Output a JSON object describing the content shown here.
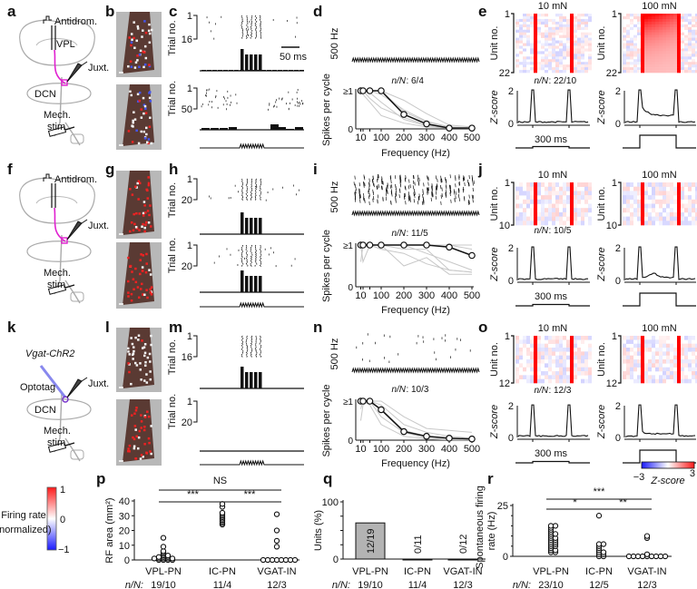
{
  "panel_labels": [
    "a",
    "b",
    "c",
    "d",
    "e",
    "f",
    "g",
    "h",
    "i",
    "j",
    "k",
    "l",
    "m",
    "n",
    "o",
    "p",
    "q",
    "r"
  ],
  "rows": [
    {
      "schematic": {
        "stim_pulse_label": "Antidrom.",
        "region": "VPL",
        "electrode": "Juxt.",
        "nucleus": "DCN",
        "stim_line1": "Mech.",
        "stim_line2": "stim."
      },
      "raster_top": {
        "ylabel": "Trial no.",
        "first": "1",
        "last": "16"
      },
      "raster_bottom": {
        "ylabel": "Trial no.",
        "first": "1",
        "last": "50"
      },
      "scale_bar": "50 ms",
      "freq": {
        "stim_label": "500 Hz",
        "nN_label": "n/N",
        "nN_value": "6/4",
        "ylabel": "Spikes per cycle",
        "xlabel": "Frequency (Hz)",
        "ytop": "≥1",
        "ybottom": "0"
      },
      "heat": {
        "left_title": "10 mN",
        "right_title": "100 mN",
        "ylabel": "Unit no.",
        "first": "1",
        "last": "22",
        "nN_label": "n/N",
        "nN_value": "22/10",
        "zlabel": "Z-score",
        "z_top": "2",
        "z_bottom": "0",
        "duration": "300 ms"
      }
    },
    {
      "schematic": {
        "stim_pulse_label": "Antidrom.",
        "electrode": "Juxt.",
        "stim_line1": "Mech.",
        "stim_line2": "stim."
      },
      "raster_top": {
        "ylabel": "Trial no.",
        "first": "1",
        "last": "20"
      },
      "raster_bottom": {
        "ylabel": "Trial no.",
        "first": "1",
        "last": "20"
      },
      "freq": {
        "stim_label": "500 Hz",
        "nN_label": "n/N",
        "nN_value": "11/5",
        "ylabel": "Spikes per cycle",
        "xlabel": "Frequency (Hz)",
        "ytop": "≥1",
        "ybottom": "0"
      },
      "heat": {
        "left_title": "10 mN",
        "right_title": "100 mN",
        "ylabel": "Unit no.",
        "first": "1",
        "last": "10",
        "nN_label": "n/N",
        "nN_value": "10/5",
        "zlabel": "Z-score",
        "z_top": "2",
        "z_bottom": "0",
        "duration": "300 ms"
      }
    },
    {
      "schematic": {
        "genotype": "Vgat-ChR2",
        "optotag": "Optotag",
        "electrode": "Juxt.",
        "nucleus": "DCN",
        "stim_line1": "Mech.",
        "stim_line2": "stim."
      },
      "raster_top": {
        "ylabel": "Trial no.",
        "first": "1",
        "last": "16"
      },
      "raster_bottom": {
        "ylabel": "Trial no.",
        "first": "1",
        "last": "20"
      },
      "freq": {
        "stim_label": "500 Hz",
        "nN_label": "n/N",
        "nN_value": "10/3",
        "ylabel": "Spikes per cycle",
        "xlabel": "Frequency (Hz)",
        "ytop": "≥1",
        "ybottom": "0"
      },
      "heat": {
        "left_title": "10 mN",
        "right_title": "100 mN",
        "ylabel": "Unit no.",
        "first": "1",
        "last": "12",
        "nN_label": "n/N",
        "nN_value": "12/3",
        "zlabel": "Z-score",
        "z_top": "2",
        "z_bottom": "0",
        "duration": "300 ms"
      }
    }
  ],
  "firing_rate_colorbar": {
    "label_line1": "Firing rate",
    "label_line2": "(normalized)",
    "max": "1",
    "mid": "0",
    "min": "−1",
    "colors": [
      "#1a1aff",
      "#ffffff",
      "#ff1a1a"
    ]
  },
  "zscore_colorbar": {
    "min": "−3",
    "label": "Z-score",
    "max": "3",
    "colors": [
      "#1a1aff",
      "#ffffff",
      "#ff1a1a"
    ]
  },
  "nN_row_label": "n/N:",
  "chart_data": [
    {
      "panel": "d",
      "type": "line",
      "xlabel": "Frequency (Hz)",
      "ylabel": "Spikes per cycle",
      "x_ticks": [
        "10",
        "100",
        "200",
        "300",
        "400",
        "500"
      ],
      "y_ticks": [
        "0",
        "≥1"
      ],
      "ylim": [
        0,
        1
      ],
      "xlim": [
        0,
        500
      ],
      "x": [
        10,
        20,
        50,
        100,
        200,
        300,
        400,
        500
      ],
      "mean": [
        1,
        1,
        1,
        1,
        0.38,
        0.13,
        0.02,
        0.02
      ],
      "individual": [
        [
          1,
          1,
          1,
          1,
          0.75,
          0.4,
          0.1,
          0.05
        ],
        [
          1,
          1,
          0.8,
          0.55,
          0.3,
          0.1,
          0.02,
          0.01
        ],
        [
          1,
          0.9,
          0.7,
          0.35,
          0.15,
          0.05,
          0.02,
          0.01
        ],
        [
          1,
          1,
          1,
          0.9,
          0.5,
          0.2,
          0.05,
          0.02
        ],
        [
          1,
          1,
          0.95,
          0.7,
          0.25,
          0.08,
          0.03,
          0.02
        ],
        [
          1,
          1,
          1,
          1,
          0.45,
          0.18,
          0.05,
          0.03
        ]
      ]
    },
    {
      "panel": "i",
      "type": "line",
      "xlabel": "Frequency (Hz)",
      "ylabel": "Spikes per cycle",
      "x_ticks": [
        "10",
        "100",
        "200",
        "300",
        "400",
        "500"
      ],
      "y_ticks": [
        "0",
        "≥1"
      ],
      "ylim": [
        0,
        1
      ],
      "xlim": [
        0,
        500
      ],
      "x": [
        10,
        20,
        50,
        100,
        200,
        300,
        400,
        500
      ],
      "mean": [
        1,
        1,
        1,
        1,
        1,
        1,
        0.95,
        0.75
      ],
      "individual": [
        [
          1,
          0.6,
          1,
          1,
          0.5,
          0.7,
          0.3,
          0.3
        ],
        [
          1,
          1,
          1,
          0.9,
          0.8,
          0.55,
          0.4,
          0.35
        ],
        [
          0.6,
          1,
          1,
          1,
          1,
          0.8,
          0.6,
          0.4
        ],
        [
          1,
          1,
          1,
          1,
          1,
          1,
          1,
          1
        ],
        [
          1,
          1,
          1,
          1,
          0.9,
          0.9,
          0.4,
          0.35
        ],
        [
          1,
          1,
          1,
          1,
          1,
          1,
          1,
          0.9
        ]
      ]
    },
    {
      "panel": "n",
      "type": "line",
      "xlabel": "Frequency (Hz)",
      "ylabel": "Spikes per cycle",
      "x_ticks": [
        "10",
        "100",
        "200",
        "300",
        "400",
        "500"
      ],
      "y_ticks": [
        "0",
        "≥1"
      ],
      "ylim": [
        0,
        1
      ],
      "xlim": [
        0,
        500
      ],
      "x": [
        10,
        20,
        50,
        100,
        200,
        300,
        400,
        500
      ],
      "mean": [
        1,
        1,
        1,
        0.78,
        0.22,
        0.1,
        0.05,
        0.03
      ],
      "individual": [
        [
          1,
          1,
          1,
          1,
          0.6,
          0.3,
          0.25,
          0.2
        ],
        [
          0.8,
          1,
          1,
          0.6,
          0.2,
          0.05,
          0.02,
          0.01
        ],
        [
          1,
          1,
          0.9,
          0.4,
          0.1,
          0.03,
          0.01,
          0.01
        ],
        [
          0.5,
          0.9,
          1,
          0.8,
          0.25,
          0.1,
          0.05,
          0.02
        ],
        [
          1,
          1,
          1,
          0.9,
          0.4,
          0.2,
          0.1,
          0.05
        ]
      ]
    },
    {
      "panel": "p",
      "type": "scatter",
      "ylabel": "RF area (mm²)",
      "y_ticks": [
        "0",
        "10",
        "20",
        "30",
        "40"
      ],
      "ylim": [
        0,
        40
      ],
      "categories": [
        "VPL-PN",
        "IC-PN",
        "VGAT-IN"
      ],
      "nN": [
        "19/10",
        "11/4",
        "12/3"
      ],
      "values": [
        [
          0,
          0,
          0,
          0,
          1,
          1,
          1,
          1,
          1,
          2,
          2,
          2,
          3,
          3,
          4,
          5,
          6,
          9,
          15
        ],
        [
          24,
          25,
          26,
          27,
          28,
          29,
          30,
          31,
          32,
          36,
          38
        ],
        [
          0,
          0,
          0,
          0,
          0,
          0,
          0,
          0,
          9,
          13,
          20,
          31
        ]
      ],
      "significance": [
        {
          "pair": [
            "VPL-PN",
            "VGAT-IN"
          ],
          "label": "NS"
        },
        {
          "pair": [
            "VPL-PN",
            "IC-PN"
          ],
          "label": "***"
        },
        {
          "pair": [
            "IC-PN",
            "VGAT-IN"
          ],
          "label": "***"
        }
      ]
    },
    {
      "panel": "q",
      "type": "bar",
      "ylabel": "Units (%)",
      "y_ticks": [
        "0",
        "100"
      ],
      "ylim": [
        0,
        100
      ],
      "categories": [
        "VPL-PN",
        "IC-PN",
        "VGAT-IN"
      ],
      "nN": [
        "19/10",
        "11/4",
        "12/3"
      ],
      "values": [
        63.2,
        0,
        0
      ],
      "bar_labels": [
        "12/19",
        "0/11",
        "0/12"
      ],
      "bar_color": "#b3b3b3"
    },
    {
      "panel": "r",
      "type": "scatter",
      "ylabel_line1": "Spontaneous firing",
      "ylabel_line2": "rate (Hz)",
      "y_ticks": [
        "0",
        "25"
      ],
      "ylim": [
        0,
        25
      ],
      "categories": [
        "VPL-PN",
        "IC-PN",
        "VGAT-IN"
      ],
      "nN": [
        "23/10",
        "12/5",
        "12/3"
      ],
      "values": [
        [
          2,
          2,
          3,
          3,
          4,
          5,
          5,
          6,
          6,
          7,
          7,
          8,
          8,
          9,
          9,
          10,
          11,
          11,
          12,
          13,
          14,
          15,
          15
        ],
        [
          0,
          0,
          1,
          1,
          2,
          2,
          3,
          4,
          5,
          6,
          6,
          20
        ],
        [
          0,
          0,
          0,
          0,
          0,
          0,
          0,
          0,
          0,
          1,
          9,
          10
        ]
      ],
      "significance": [
        {
          "pair": [
            "VPL-PN",
            "VGAT-IN"
          ],
          "label": "***"
        },
        {
          "pair": [
            "VPL-PN",
            "IC-PN"
          ],
          "label": "*"
        },
        {
          "pair": [
            "IC-PN",
            "VGAT-IN"
          ],
          "label": "**"
        }
      ]
    }
  ]
}
